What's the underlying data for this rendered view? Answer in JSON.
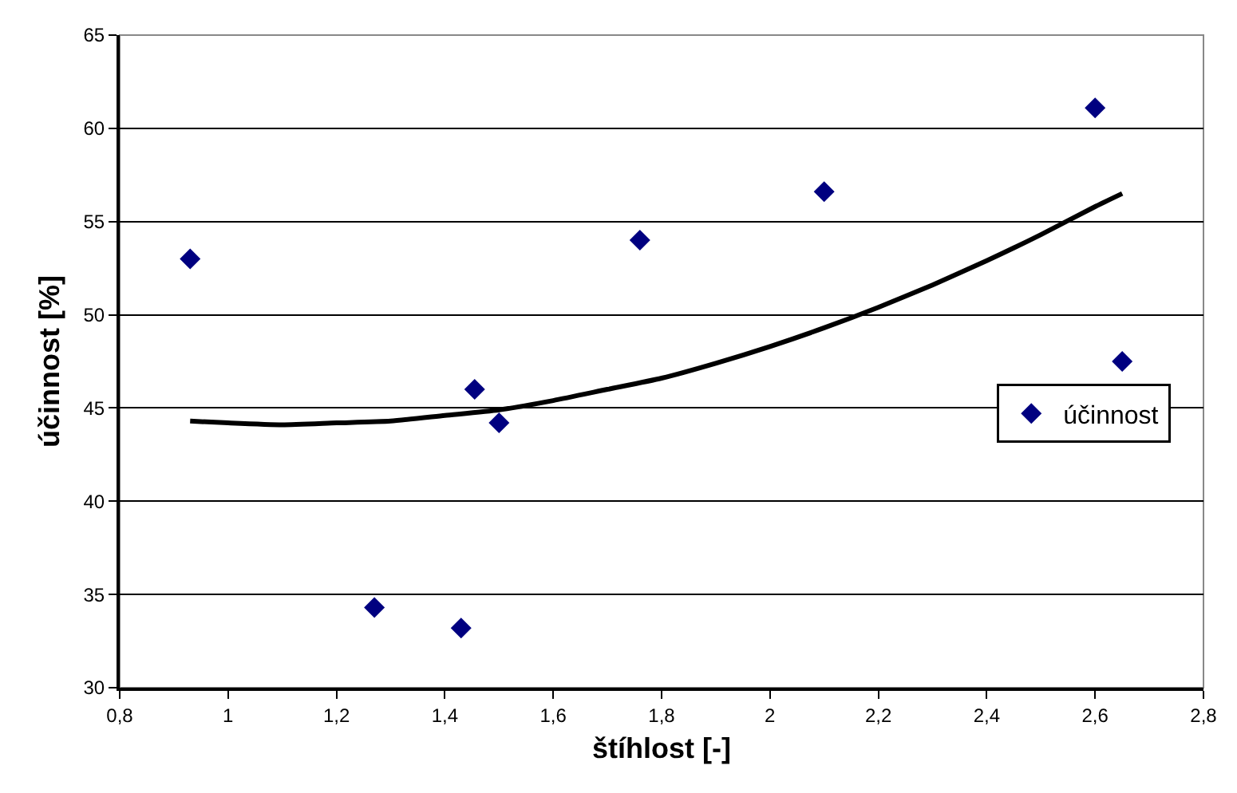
{
  "chart_data": {
    "type": "scatter",
    "xlabel": "štíhlost [-]",
    "ylabel": "účinnost [%]",
    "xlim": [
      0.8,
      2.8
    ],
    "ylim": [
      30,
      65
    ],
    "xticks": [
      {
        "value": 0.8,
        "label": "0,8"
      },
      1,
      {
        "value": 1.2,
        "label": "1,2"
      },
      {
        "value": 1.4,
        "label": "1,4"
      },
      {
        "value": 1.6,
        "label": "1,6"
      },
      {
        "value": 1.8,
        "label": "1,8"
      },
      2,
      {
        "value": 2.2,
        "label": "2,2"
      },
      {
        "value": 2.4,
        "label": "2,4"
      },
      {
        "value": 2.6,
        "label": "2,6"
      },
      {
        "value": 2.8,
        "label": "2,8"
      }
    ],
    "yticks": [
      30,
      35,
      40,
      45,
      50,
      55,
      60,
      65
    ],
    "grid": "y",
    "legend": "right",
    "series": [
      {
        "name": "účinnost",
        "marker": "diamond",
        "color": "#000080",
        "x": [
          0.93,
          1.27,
          1.43,
          1.455,
          1.5,
          1.76,
          2.1,
          2.6,
          2.65
        ],
        "values": [
          53.0,
          34.3,
          33.2,
          46.0,
          44.2,
          54.0,
          56.6,
          61.1,
          47.5
        ]
      },
      {
        "type": "line",
        "marker": "none",
        "line_style": "solid",
        "color": "#000000",
        "x": [
          0.93,
          1.0,
          1.1,
          1.2,
          1.3,
          1.4,
          1.5,
          1.6,
          1.7,
          1.8,
          1.9,
          2.0,
          2.1,
          2.2,
          2.3,
          2.4,
          2.5,
          2.6,
          2.65
        ],
        "values": [
          44.3,
          44.2,
          44.1,
          44.2,
          44.3,
          44.6,
          44.9,
          45.4,
          46.0,
          46.6,
          47.4,
          48.3,
          49.3,
          50.4,
          51.6,
          52.9,
          54.3,
          55.8,
          56.5
        ]
      }
    ]
  }
}
